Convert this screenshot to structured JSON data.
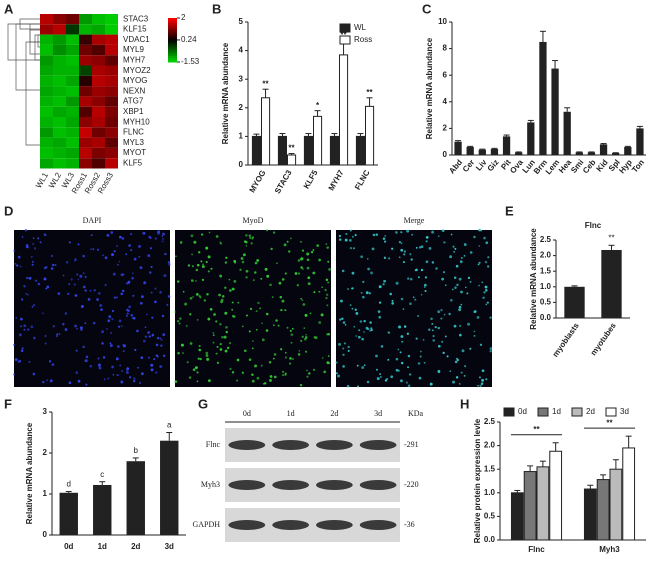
{
  "chart_data": [
    {
      "type": "heatmap",
      "panel": "A",
      "rows": [
        "STAC3",
        "KLF15",
        "VDAC1",
        "MYL9",
        "MYH7",
        "MYOZ2",
        "MYOG",
        "NEXN",
        "ATG7",
        "XBP1",
        "MYH10",
        "FLNC",
        "MYL3",
        "MYOT",
        "KLF5"
      ],
      "columns": [
        "WL1",
        "WL2",
        "WL3",
        "Ross1",
        "Ross2",
        "Ross3"
      ],
      "values": [
        [
          1.5,
          1.2,
          1.0,
          -1.0,
          -1.3,
          -1.4
        ],
        [
          1.3,
          1.5,
          -0.2,
          -1.2,
          -1.1,
          -1.4
        ],
        [
          -1.2,
          -1.0,
          -1.3,
          0.6,
          1.4,
          1.5
        ],
        [
          -1.3,
          -0.9,
          -1.1,
          1.0,
          0.8,
          1.5
        ],
        [
          -1.0,
          -1.2,
          -1.3,
          1.3,
          1.2,
          0.9
        ],
        [
          -1.1,
          -1.2,
          -1.2,
          -0.3,
          1.4,
          1.3
        ],
        [
          -1.2,
          -1.3,
          -1.1,
          0.5,
          1.5,
          1.4
        ],
        [
          -1.1,
          -1.2,
          -1.3,
          1.0,
          1.3,
          1.2
        ],
        [
          -1.2,
          -1.3,
          -1.0,
          1.4,
          1.2,
          0.9
        ],
        [
          -1.3,
          -1.1,
          -1.2,
          0.8,
          1.5,
          1.1
        ],
        [
          -1.2,
          -1.3,
          -1.1,
          1.2,
          1.4,
          1.0
        ],
        [
          -1.0,
          -1.3,
          -1.2,
          1.6,
          1.0,
          1.2
        ],
        [
          -1.2,
          -1.1,
          -1.3,
          1.3,
          1.4,
          0.9
        ],
        [
          -1.3,
          -1.2,
          -1.1,
          1.5,
          1.1,
          1.2
        ],
        [
          -1.1,
          -1.3,
          -1.2,
          1.2,
          0.8,
          1.5
        ]
      ],
      "zlim": [
        -1.53,
        2
      ],
      "zticks": [
        2,
        0.24,
        -1.53
      ]
    },
    {
      "type": "grouped_bar",
      "panel": "B",
      "ylabel": "Relative mRNA abundance",
      "categories": [
        "MYOG",
        "STAC3",
        "KLF5",
        "MYH7",
        "FLNC"
      ],
      "series": [
        {
          "name": "WL",
          "color": "#222222",
          "values": [
            1,
            1,
            1,
            1,
            1
          ],
          "errors": [
            0.08,
            0.1,
            0.1,
            0.1,
            0.1
          ]
        },
        {
          "name": "Ross",
          "color": "#ffffff",
          "values": [
            2.35,
            0.35,
            1.7,
            3.85,
            2.05
          ],
          "errors": [
            0.3,
            0.05,
            0.2,
            0.5,
            0.3
          ]
        }
      ],
      "annotations": [
        "**",
        "**",
        "*",
        "**",
        "**"
      ],
      "ylim": [
        0,
        5
      ],
      "yticks": [
        0,
        1,
        2,
        3,
        4,
        5
      ]
    },
    {
      "type": "bar",
      "panel": "C",
      "ylabel": "Relative mRNA abundance",
      "color": "#222222",
      "categories": [
        "Abd",
        "Cer",
        "Liv",
        "Giz",
        "Pit",
        "Ova",
        "Lun",
        "Brm",
        "Lem",
        "Hea",
        "Smi",
        "Ceb",
        "Kid",
        "Spl",
        "Hyp",
        "Ton"
      ],
      "values": [
        1.0,
        0.6,
        0.4,
        0.45,
        1.4,
        0.2,
        2.45,
        8.5,
        6.5,
        3.25,
        0.2,
        0.2,
        0.8,
        0.15,
        0.6,
        2.0
      ],
      "errors": [
        0.08,
        0.05,
        0.04,
        0.05,
        0.1,
        0.03,
        0.15,
        0.8,
        0.6,
        0.3,
        0.03,
        0.03,
        0.06,
        0.02,
        0.05,
        0.15
      ],
      "ylim": [
        0,
        10
      ],
      "yticks": [
        0,
        2,
        4,
        6,
        8,
        10
      ]
    },
    {
      "type": "images",
      "panel": "D",
      "labels": [
        "DAPI",
        "MyoD",
        "Merge"
      ]
    },
    {
      "type": "bar",
      "panel": "E",
      "title": "Flnc",
      "ylabel": "Relative mRNA abundance",
      "color": "#222222",
      "categories": [
        "myoblasts",
        "myotubes"
      ],
      "values": [
        1.0,
        2.18
      ],
      "errors": [
        0.03,
        0.15
      ],
      "annotations": [
        "",
        "**"
      ],
      "ylim": [
        0,
        2.5
      ],
      "yticks": [
        {
          "value": 0,
          "label": "0.0"
        },
        {
          "value": 0.5,
          "label": "0.5"
        },
        {
          "value": 1,
          "label": "1.0"
        },
        {
          "value": 1.5,
          "label": "1.5"
        },
        {
          "value": 2,
          "label": "2.0"
        },
        {
          "value": 2.5,
          "label": "2.5"
        }
      ]
    },
    {
      "type": "bar",
      "panel": "F",
      "ylabel": "Relative mRNA abundance",
      "color": "#222222",
      "categories": [
        "0d",
        "1d",
        "2d",
        "3d"
      ],
      "values": [
        1.03,
        1.22,
        1.8,
        2.3
      ],
      "errors": [
        0.03,
        0.08,
        0.08,
        0.2
      ],
      "annotations": [
        "d",
        "c",
        "b",
        "a"
      ],
      "ylim": [
        0,
        3
      ],
      "yticks": [
        0,
        1,
        2,
        3
      ]
    },
    {
      "type": "blot",
      "panel": "G",
      "lanes": [
        "0d",
        "1d",
        "2d",
        "3d"
      ],
      "unit": "KDa",
      "rows": [
        {
          "name": "Flnc",
          "size": "-291"
        },
        {
          "name": "Myh3",
          "size": "-220"
        },
        {
          "name": "GAPDH",
          "size": "-36"
        }
      ]
    },
    {
      "type": "grouped_bar",
      "panel": "H",
      "ylabel": "Relative protein expression levle",
      "categories": [
        "Flnc",
        "Myh3"
      ],
      "series": [
        {
          "name": "0d",
          "color": "#222222",
          "values": [
            1.0,
            1.08
          ],
          "errors": [
            0.05,
            0.08
          ]
        },
        {
          "name": "1d",
          "color": "#777777",
          "values": [
            1.45,
            1.28
          ],
          "errors": [
            0.12,
            0.1
          ]
        },
        {
          "name": "2d",
          "color": "#bbbbbb",
          "values": [
            1.55,
            1.5
          ],
          "errors": [
            0.12,
            0.2
          ]
        },
        {
          "name": "3d",
          "color": "#ffffff",
          "values": [
            1.88,
            1.95
          ],
          "errors": [
            0.18,
            0.25
          ]
        }
      ],
      "annotations": [
        "**",
        "**"
      ],
      "ylim": [
        0,
        2.5
      ],
      "yticks": [
        {
          "value": 0,
          "label": "0.0"
        },
        {
          "value": 0.5,
          "label": "0.5"
        },
        {
          "value": 1,
          "label": "1.0"
        },
        {
          "value": 1.5,
          "label": "1.5"
        },
        {
          "value": 2,
          "label": "2.0"
        },
        {
          "value": 2.5,
          "label": "2.5"
        }
      ]
    }
  ]
}
